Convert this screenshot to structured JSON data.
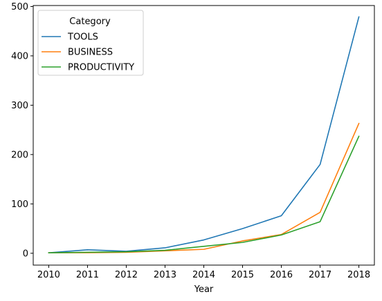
{
  "chart_data": {
    "type": "line",
    "title": "",
    "xlabel": "Year",
    "ylabel": "",
    "x": [
      2010,
      2011,
      2012,
      2013,
      2014,
      2015,
      2016,
      2017,
      2018
    ],
    "xticks": [
      "2010",
      "2011",
      "2012",
      "2013",
      "2014",
      "2015",
      "2016",
      "2017",
      "2018"
    ],
    "yticks": [
      0,
      100,
      200,
      300,
      400,
      500
    ],
    "xlim": [
      2009.6,
      2018.4
    ],
    "ylim": [
      -24,
      502
    ],
    "grid": false,
    "legend": {
      "title": "Category",
      "placement": "upper-left"
    },
    "series": [
      {
        "name": "TOOLS",
        "color": "#1f77b4",
        "values": [
          1,
          7,
          4,
          11,
          27,
          50,
          76,
          180,
          479
        ]
      },
      {
        "name": "BUSINESS",
        "color": "#ff7f0e",
        "values": [
          1,
          1,
          2,
          5,
          8,
          25,
          38,
          83,
          263
        ]
      },
      {
        "name": "PRODUCTIVITY",
        "color": "#2ca02c",
        "values": [
          1,
          2,
          3,
          6,
          14,
          22,
          37,
          64,
          237
        ]
      }
    ]
  }
}
